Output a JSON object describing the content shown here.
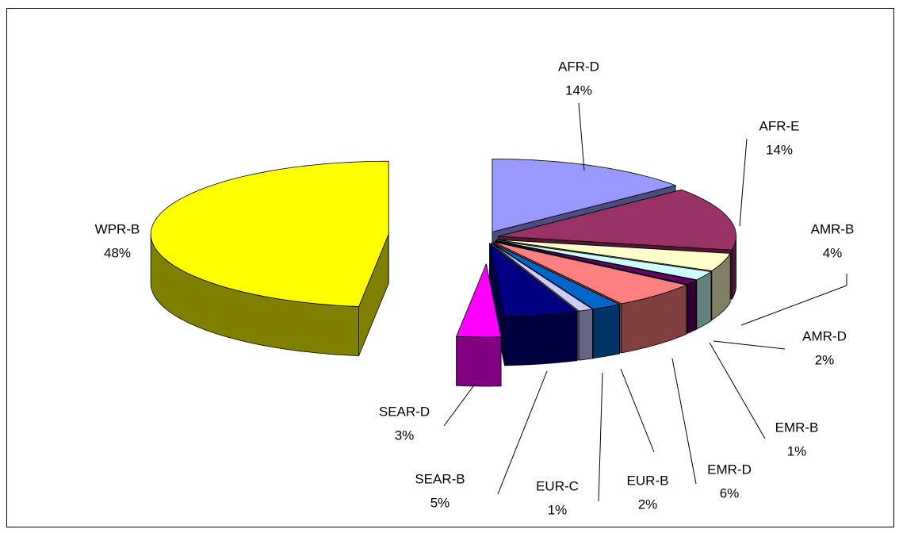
{
  "chart_data": {
    "type": "pie3d",
    "categories": [
      "AFR-D",
      "AFR-E",
      "AMR-B",
      "AMR-D",
      "EMR-B",
      "EMR-D",
      "EUR-B",
      "EUR-C",
      "SEAR-B",
      "SEAR-D",
      "WPR-B"
    ],
    "values": [
      14,
      14,
      4,
      2,
      1,
      6,
      2,
      1,
      5,
      3,
      48
    ],
    "value_labels": [
      "14%",
      "14%",
      "4%",
      "2%",
      "1%",
      "6%",
      "2%",
      "1%",
      "5%",
      "3%",
      "48%"
    ],
    "colors": [
      "#9999ff",
      "#993366",
      "#ffffcc",
      "#ccffff",
      "#660066",
      "#ff8080",
      "#0066cc",
      "#ccccff",
      "#000080",
      "#ff00ff",
      "#ffff00"
    ]
  }
}
